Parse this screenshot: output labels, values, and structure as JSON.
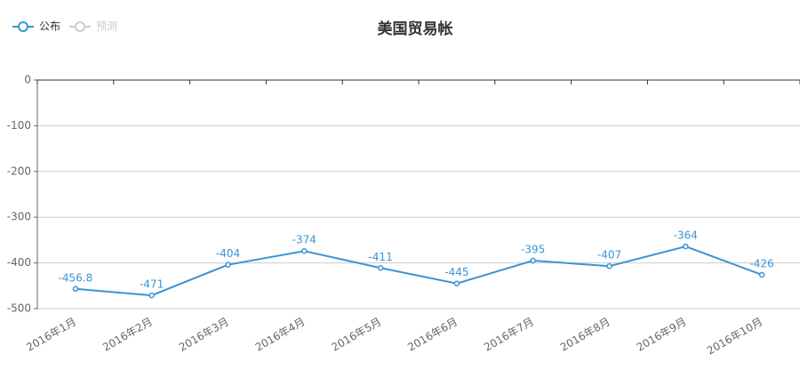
{
  "chart_data": {
    "type": "line",
    "title": "美国贸易帐",
    "categories": [
      "2016年1月",
      "2016年2月",
      "2016年3月",
      "2016年4月",
      "2016年5月",
      "2016年6月",
      "2016年7月",
      "2016年8月",
      "2016年9月",
      "2016年10月"
    ],
    "series": [
      {
        "name": "公布",
        "color": "#3a95d4",
        "values": [
          -456.8,
          -471,
          -404,
          -374,
          -411,
          -445,
          -395,
          -407,
          -364,
          -426
        ]
      },
      {
        "name": "预测",
        "color": "#cccccc",
        "values": [
          null,
          null,
          null,
          null,
          null,
          null,
          null,
          null,
          null,
          null
        ]
      }
    ],
    "ylim": [
      -500,
      0
    ],
    "yticks": [
      0,
      -100,
      -200,
      -300,
      -400,
      -500
    ],
    "grid": true
  }
}
